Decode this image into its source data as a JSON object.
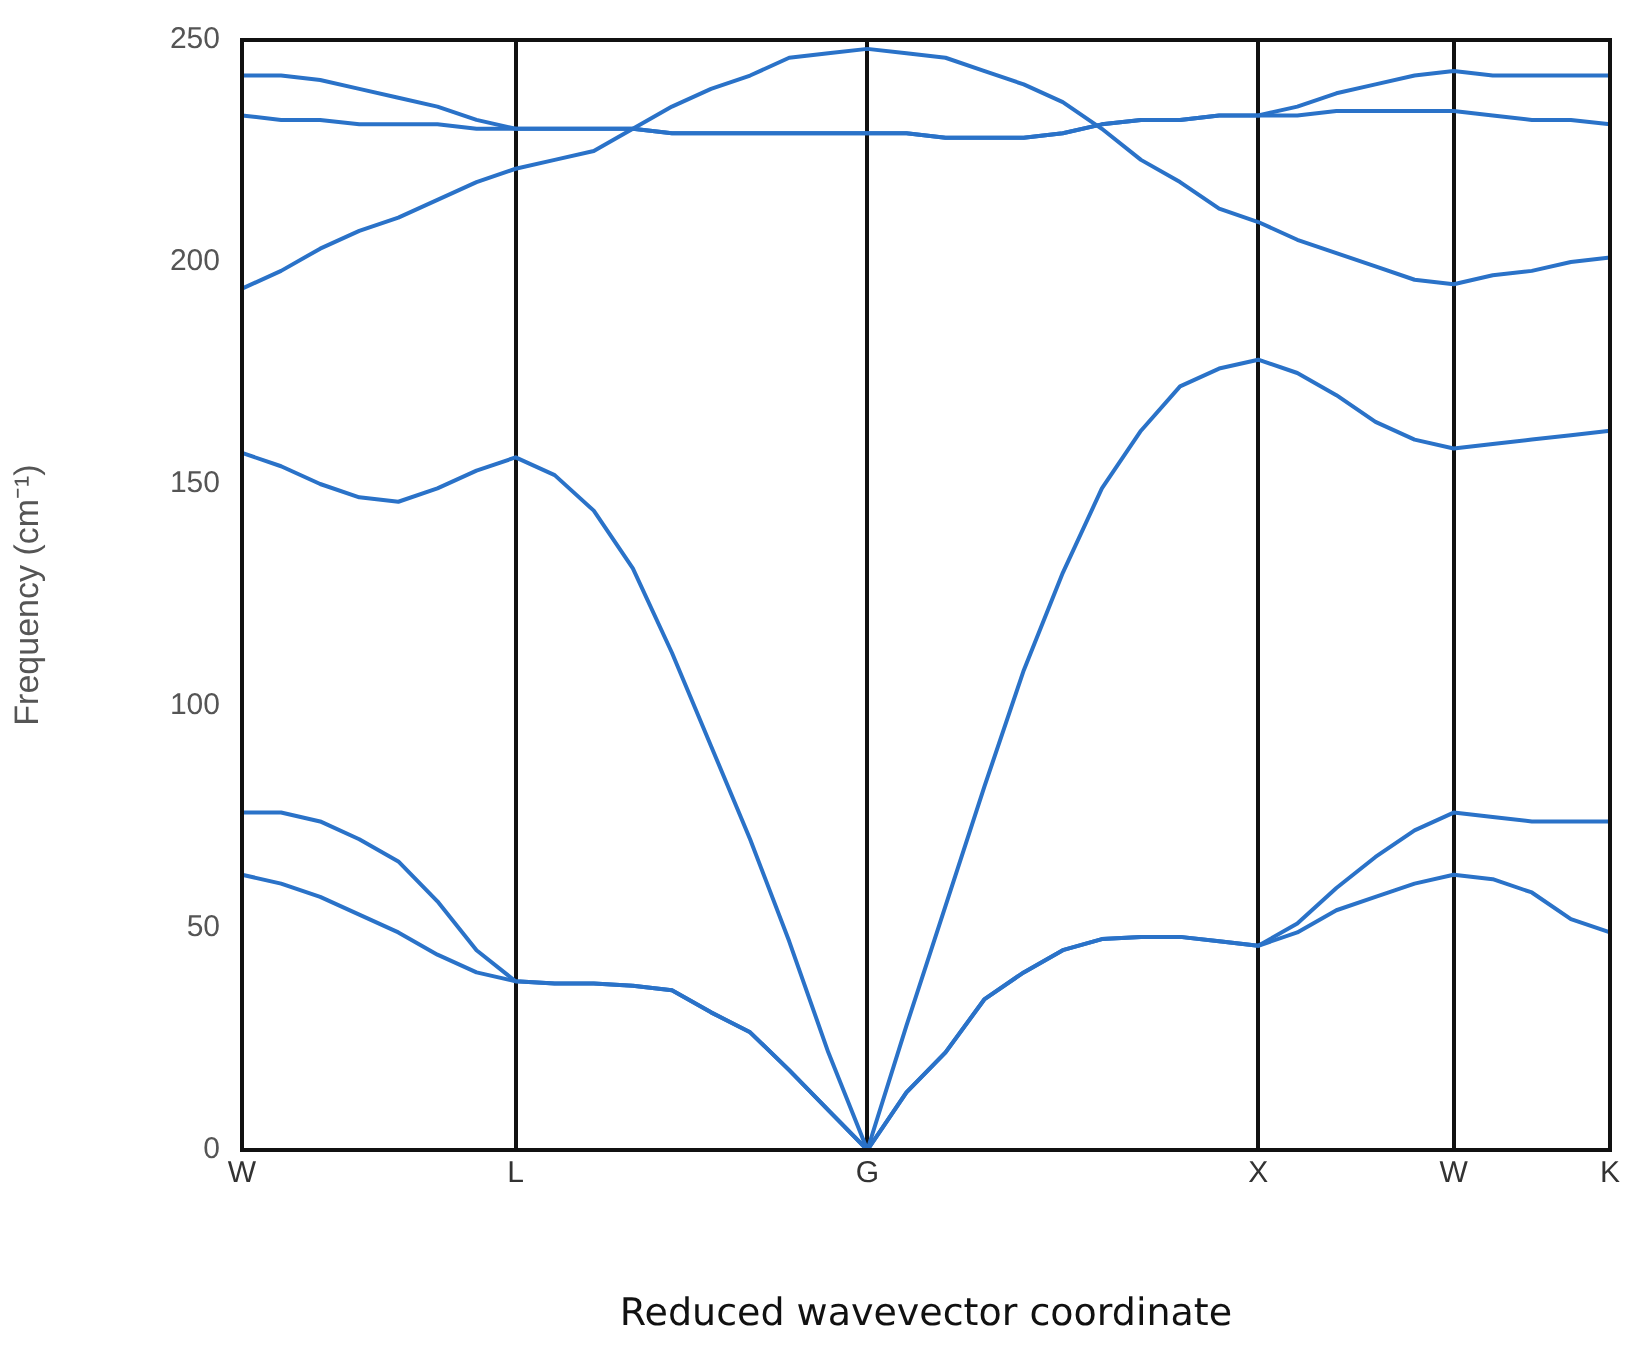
{
  "chart_data": {
    "type": "line",
    "xlabel": "Reduced wavevector coordinate",
    "ylabel": "Frequency (cm⁻¹)",
    "categories": [
      "W",
      null,
      null,
      null,
      null,
      null,
      null,
      "L",
      null,
      null,
      null,
      null,
      null,
      null,
      null,
      null,
      "G",
      null,
      null,
      null,
      null,
      null,
      null,
      null,
      null,
      null,
      "X",
      null,
      null,
      null,
      null,
      "W",
      null,
      null,
      null,
      "K"
    ],
    "ylim": [
      0,
      250
    ],
    "yticks": [
      0,
      50,
      100,
      150,
      200,
      250
    ],
    "grid": "x",
    "series": [
      {
        "color": "#2a72c8",
        "values": [
          62,
          60,
          57,
          53,
          49,
          44,
          40,
          38,
          37.5,
          37.5,
          37,
          36,
          31,
          26.5,
          18,
          9,
          0,
          13,
          22,
          34,
          40,
          45,
          47.5,
          48,
          48,
          47,
          46,
          49,
          54,
          57,
          60,
          62,
          61,
          58,
          52,
          49
        ]
      },
      {
        "color": "#2a72c8",
        "values": [
          76,
          76,
          74,
          70,
          65,
          56,
          45,
          38,
          37.5,
          37.5,
          37,
          36,
          31,
          26.5,
          18,
          9,
          0,
          13,
          22,
          34,
          40,
          45,
          47.5,
          48,
          48,
          47,
          46,
          51,
          59,
          66,
          72,
          76,
          75,
          74,
          74,
          74
        ]
      },
      {
        "color": "#2a72c8",
        "values": [
          157,
          154,
          150,
          147,
          146,
          149,
          153,
          156,
          152,
          144,
          131,
          112,
          91,
          70,
          47,
          22,
          0,
          28,
          55,
          82,
          108,
          130,
          149,
          162,
          172,
          176,
          178,
          175,
          170,
          164,
          160,
          158,
          159,
          160,
          161,
          162
        ]
      },
      {
        "color": "#2a72c8",
        "values": [
          194,
          198,
          203,
          207,
          210,
          214,
          218,
          221,
          223,
          225,
          230,
          235,
          239,
          242,
          246,
          247,
          248,
          247,
          246,
          243,
          240,
          236,
          230,
          223,
          218,
          212,
          209,
          205,
          202,
          199,
          196,
          195,
          197,
          198,
          200,
          201
        ]
      },
      {
        "color": "#2a72c8",
        "values": [
          233,
          232,
          232,
          231,
          231,
          231,
          230,
          230,
          230,
          230,
          230,
          229,
          229,
          229,
          229,
          229,
          229,
          229,
          228,
          228,
          228,
          229,
          231,
          232,
          232,
          233,
          233,
          233,
          234,
          234,
          234,
          234,
          233,
          232,
          232,
          231
        ]
      },
      {
        "color": "#2a72c8",
        "values": [
          242,
          242,
          241,
          239,
          237,
          235,
          232,
          230,
          230,
          230,
          230,
          229,
          229,
          229,
          229,
          229,
          229,
          229,
          228,
          228,
          228,
          229,
          231,
          232,
          232,
          233,
          233,
          235,
          238,
          240,
          242,
          243,
          242,
          242,
          242,
          242
        ]
      }
    ]
  }
}
